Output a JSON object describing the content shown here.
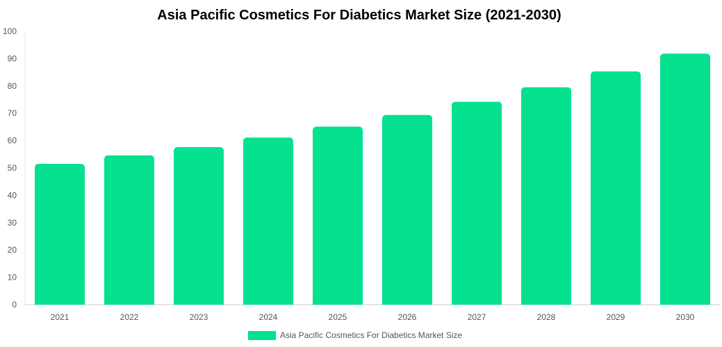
{
  "chart_data": {
    "type": "bar",
    "title": "Asia Pacific Cosmetics For Diabetics Market Size (2021-2030)",
    "xlabel": "",
    "ylabel": "",
    "categories": [
      "2021",
      "2022",
      "2023",
      "2024",
      "2025",
      "2026",
      "2027",
      "2028",
      "2029",
      "2030"
    ],
    "series": [
      {
        "name": "Asia Pacific Cosmetics For Diabetics Market Size",
        "values": [
          51.5,
          54.6,
          57.6,
          61.1,
          65.1,
          69.4,
          74.2,
          79.5,
          85.3,
          91.8
        ],
        "color": "#05e18e"
      }
    ],
    "ylim": [
      0,
      100
    ],
    "yticks": [
      "0",
      "10",
      "20",
      "30",
      "40",
      "50",
      "60",
      "70",
      "80",
      "90",
      "100"
    ],
    "grid": false,
    "legend": "bottom-center"
  }
}
